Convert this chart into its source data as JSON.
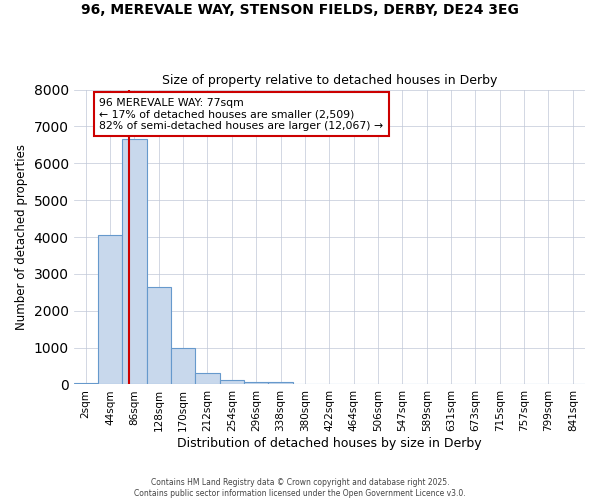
{
  "title1": "96, MEREVALE WAY, STENSON FIELDS, DERBY, DE24 3EG",
  "title2": "Size of property relative to detached houses in Derby",
  "xlabel": "Distribution of detached houses by size in Derby",
  "ylabel": "Number of detached properties",
  "categories": [
    "2sqm",
    "44sqm",
    "86sqm",
    "128sqm",
    "170sqm",
    "212sqm",
    "254sqm",
    "296sqm",
    "338sqm",
    "380sqm",
    "422sqm",
    "464sqm",
    "506sqm",
    "547sqm",
    "589sqm",
    "631sqm",
    "673sqm",
    "715sqm",
    "757sqm",
    "799sqm",
    "841sqm"
  ],
  "values": [
    50,
    4050,
    6650,
    2650,
    1000,
    320,
    110,
    75,
    70,
    0,
    0,
    0,
    0,
    0,
    0,
    0,
    0,
    0,
    0,
    0,
    0
  ],
  "bar_color": "#c8d8ec",
  "bar_edge_color": "#6699cc",
  "vline_color": "#cc0000",
  "annotation_line1": "96 MEREVALE WAY: 77sqm",
  "annotation_line2": "← 17% of detached houses are smaller (2,509)",
  "annotation_line3": "82% of semi-detached houses are larger (12,067) →",
  "annotation_box_color": "#cc0000",
  "ylim": [
    0,
    8000
  ],
  "yticks": [
    0,
    1000,
    2000,
    3000,
    4000,
    5000,
    6000,
    7000,
    8000
  ],
  "grid_color": "#c0c8d8",
  "bg_color": "#ffffff",
  "footer1": "Contains HM Land Registry data © Crown copyright and database right 2025.",
  "footer2": "Contains public sector information licensed under the Open Government Licence v3.0."
}
